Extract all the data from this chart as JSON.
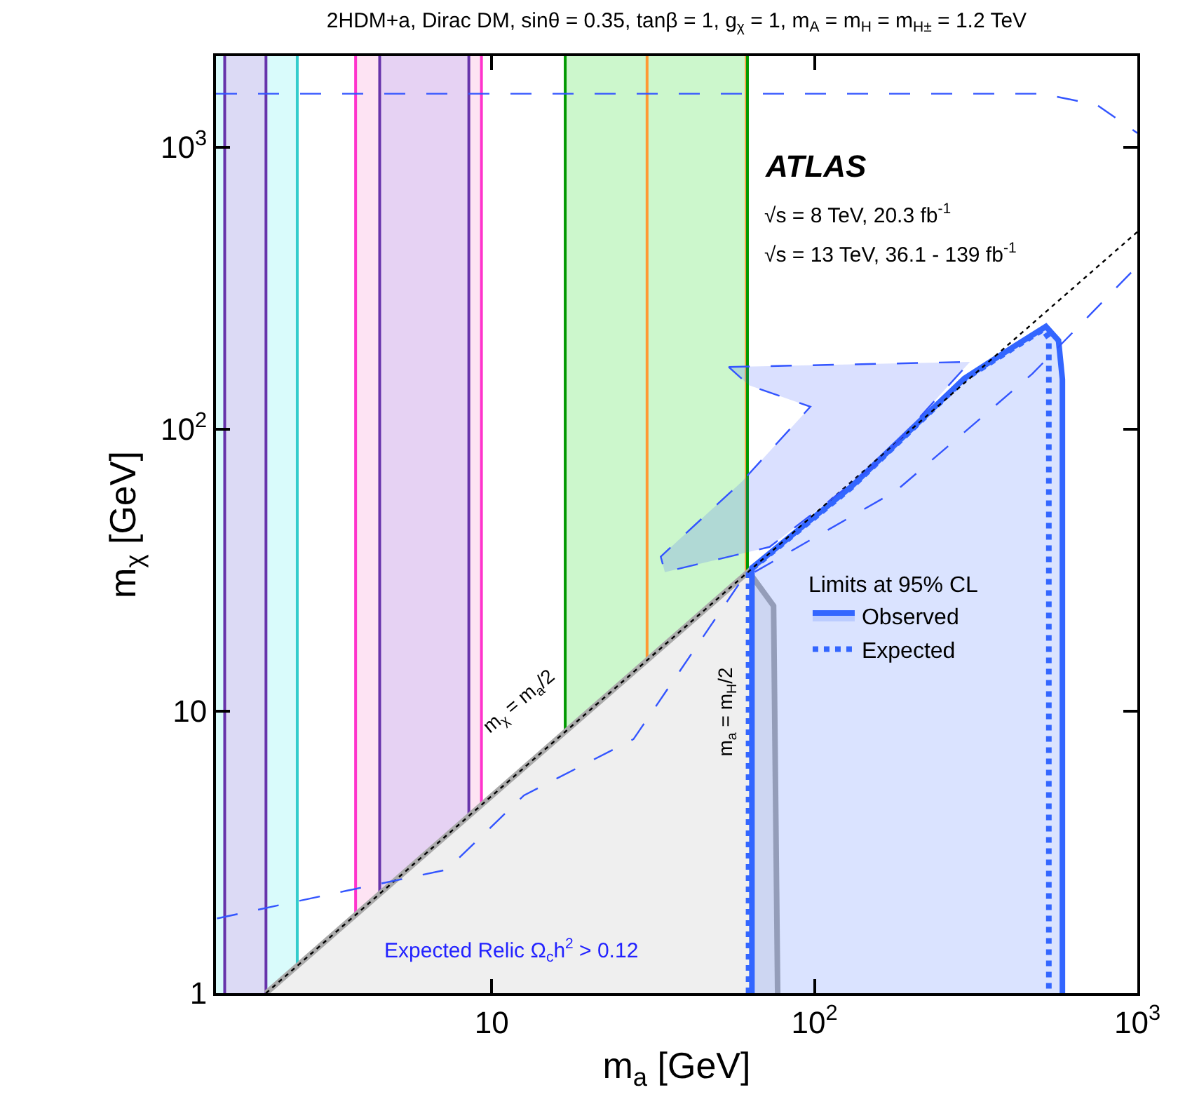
{
  "chart_data": {
    "type": "line",
    "title": "2HDM+a, Dirac DM, sinθ = 0.35, tanβ = 1, g$_{χ}$ = 1, m$_{A}$ = m$_{H}$ = m$_{H±}$ = 1.2 TeV",
    "xlabel": "m$_{a}$ [GeV]",
    "ylabel": "m$_{χ}$ [GeV]",
    "legend_title": "Limits at 95% CL",
    "log": "xy",
    "xlim": [
      1.4,
      1000
    ],
    "ylim": [
      1,
      2100
    ],
    "xticks": [
      10,
      {
        "value": 100,
        "label": "10$^{2}$"
      },
      {
        "value": 1000,
        "label": "10$^{3}$"
      }
    ],
    "yticks": [
      1,
      10,
      {
        "value": 100,
        "label": "10$^{2}$"
      },
      {
        "value": 1000,
        "label": "10$^{3}$"
      }
    ],
    "grid": false,
    "legend": "right",
    "bands": [
      {
        "axis": "x",
        "from": 1.4,
        "to": 2.5,
        "color": "#d9fbfb"
      },
      {
        "axis": "x",
        "from": 1.49,
        "to": 2.0,
        "color": "#dcdaf5"
      },
      {
        "axis": "x",
        "from": 3.79,
        "to": 9.3,
        "color": "#fde3f3"
      },
      {
        "axis": "x",
        "from": 4.5,
        "to": 8.5,
        "color": "#e6d2f3"
      },
      {
        "axis": "x",
        "from": 16.9,
        "to": 62,
        "color": "#ccf7cc"
      }
    ],
    "ref_lines": [
      {
        "axis": "x",
        "value": 1.49,
        "color": "#6633aa"
      },
      {
        "axis": "x",
        "value": 2.0,
        "color": "#6633aa"
      },
      {
        "axis": "x",
        "value": 2.5,
        "color": "#33cccc"
      },
      {
        "axis": "x",
        "value": 3.79,
        "color": "#ff33cc"
      },
      {
        "axis": "x",
        "value": 4.5,
        "color": "#6633aa"
      },
      {
        "axis": "x",
        "value": 8.5,
        "color": "#6633aa"
      },
      {
        "axis": "x",
        "value": 9.3,
        "color": "#ff33cc"
      },
      {
        "axis": "x",
        "value": 16.9,
        "color": "#009900"
      },
      {
        "axis": "x",
        "value": 30.3,
        "color": "#ff9933"
      },
      {
        "axis": "x",
        "value": 61.5,
        "color": "#ff9933"
      },
      {
        "axis": "x",
        "value": 62,
        "color": "#009900"
      }
    ],
    "series": [
      {
        "type": "area",
        "color": "#aaaaaa",
        "x": [
          2,
          62.5,
          74.7,
          76.9
        ],
        "values": [
          1,
          31.25,
          23.6,
          1
        ]
      },
      {
        "type": "area",
        "name": "Observed",
        "color": "#3366ff",
        "x": [
          64,
          64,
          130,
          291,
          417,
          521,
          570,
          586,
          586
        ],
        "values": [
          1,
          32.2,
          62.5,
          151,
          197,
          231,
          206,
          150,
          1
        ]
      },
      {
        "name": "Expected",
        "color": "#3366ff",
        "line_style": "dotted",
        "x": [
          62.5,
          62.5,
          130,
          291,
          417,
          510,
          532,
          532
        ],
        "values": [
          1,
          31.25,
          62,
          150,
          195,
          225,
          210,
          1
        ]
      },
      {
        "color": "#000000",
        "line_style": "dotted",
        "x": [
          2,
          1000
        ],
        "values": [
          1,
          500
        ]
      },
      {
        "color": "#3355ff",
        "line_style": "dashed",
        "x": [
          1.4,
          507,
          750,
          1000
        ],
        "values": [
          1545,
          1545,
          1410,
          1120
        ]
      },
      {
        "color": "#3355ff",
        "line_style": "dashed",
        "x": [
          1.41,
          3.57,
          7.26,
          12.6,
          27.5,
          59.8,
          179,
          473,
          982
        ],
        "values": [
          1.84,
          2.31,
          2.74,
          5.03,
          7.95,
          29.4,
          60.4,
          157,
          370
        ]
      },
      {
        "type": "area",
        "color": "#3355ff",
        "line_style": "dashed",
        "x": [
          54.2,
          303,
          158,
          72.6,
          34.4,
          33.4,
          59.8,
          97.1,
          62.7,
          54.2
        ],
        "values": [
          166,
          173,
          76,
          38.2,
          31.1,
          35.3,
          65.4,
          120,
          143,
          166
        ]
      }
    ],
    "annotations": [
      "ATLAS",
      "√s = 8 TeV, 20.3 fb$^{-1}$",
      "√s = 13 TeV, 36.1 - 139 fb$^{-1}$",
      "m$_{χ}$ = m$_{a}$/2",
      "m$_{a}$ = m$_{H}$/2",
      "Expected Relic Ω$_{c}$h$^{2}$ > 0.12"
    ]
  }
}
